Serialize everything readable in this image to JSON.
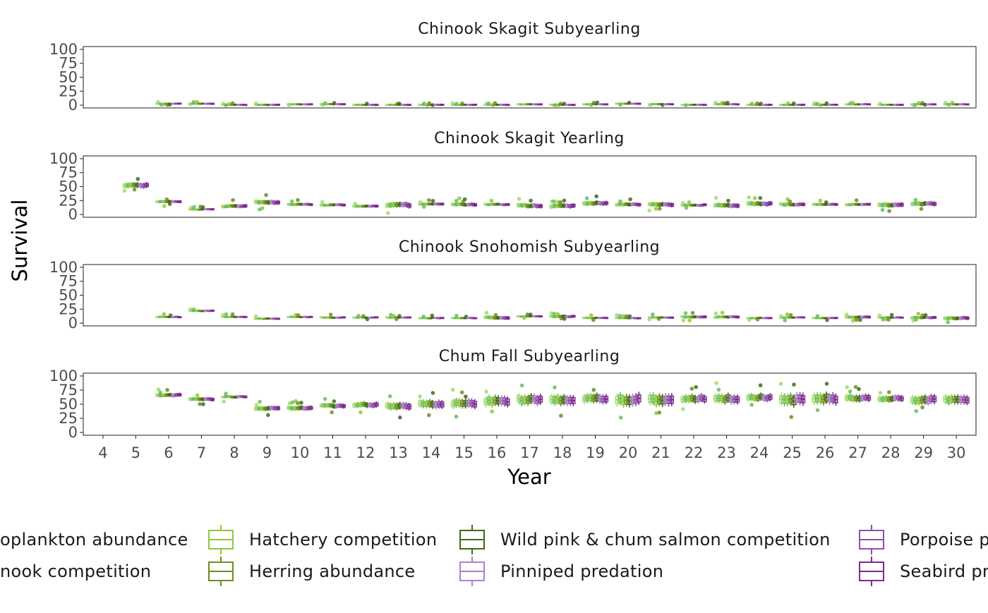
{
  "chart_data": {
    "type": "box",
    "xlabel": "Year",
    "ylabel": "Survival",
    "x_ticks": [
      4,
      5,
      6,
      7,
      8,
      9,
      10,
      11,
      12,
      13,
      14,
      15,
      16,
      17,
      18,
      19,
      20,
      21,
      22,
      23,
      24,
      25,
      26,
      27,
      28,
      29,
      30
    ],
    "x_range": [
      3.4,
      30.6
    ],
    "y_ticks": [
      0,
      25,
      50,
      75,
      100
    ],
    "y_range": [
      -5,
      105
    ],
    "grid": false,
    "legend_position": "bottom",
    "series_names": [
      "Zooplankton abundance",
      "Chinook competition",
      "Hatchery competition",
      "Herring abundance",
      "Wild pink & chum salmon competition",
      "Pinniped predation",
      "Porpoise predation",
      "Seabird predation"
    ],
    "series_colors": [
      "#a6d96a",
      "#66bd63",
      "#8fc93a",
      "#6b8e23",
      "#3f6b14",
      "#b080c8",
      "#9050a8",
      "#7b2a8c"
    ],
    "legend": [
      {
        "label": "oplankton abundance",
        "color": "#a6d96a"
      },
      {
        "label": "Hatchery competition",
        "color": "#8fc93a"
      },
      {
        "label": "Wild pink & chum salmon competition",
        "color": "#3f6b14"
      },
      {
        "label": "Porpoise p",
        "color": "#9050a8"
      },
      {
        "label": "nook competition",
        "color": "#66bd63"
      },
      {
        "label": "Herring abundance",
        "color": "#6b8e23"
      },
      {
        "label": "Pinniped predation",
        "color": "#b080c8"
      },
      {
        "label": "Seabird pr",
        "color": "#7b2a8c"
      }
    ],
    "panels": [
      {
        "title": "Chinook Skagit Subyearling",
        "years": [
          6,
          7,
          8,
          9,
          10,
          11,
          12,
          13,
          14,
          15,
          16,
          17,
          18,
          19,
          20,
          21,
          22,
          23,
          24,
          25,
          26,
          27,
          28,
          29,
          30
        ],
        "medians": [
          3,
          3,
          1,
          1,
          2,
          2,
          1,
          1,
          1,
          1,
          1,
          2,
          1,
          2,
          3,
          2,
          1,
          2,
          1,
          1,
          1,
          2,
          1,
          2,
          2
        ],
        "spread": [
          1,
          1,
          1,
          1,
          1,
          1,
          1,
          1,
          1,
          1,
          1,
          1,
          1,
          1,
          1,
          1,
          1,
          1,
          1,
          1,
          1,
          1,
          1,
          1,
          1
        ]
      },
      {
        "title": "Chinook Skagit Yearling",
        "years": [
          5,
          6,
          7,
          8,
          9,
          10,
          11,
          12,
          13,
          14,
          15,
          16,
          17,
          18,
          19,
          20,
          21,
          22,
          23,
          24,
          25,
          26,
          27,
          28,
          29
        ],
        "medians": [
          52,
          23,
          9,
          15,
          22,
          18,
          17,
          15,
          17,
          19,
          18,
          18,
          16,
          15,
          20,
          18,
          18,
          17,
          16,
          19,
          18,
          18,
          18,
          17,
          19
        ],
        "spread": [
          6,
          3,
          2,
          4,
          5,
          3,
          3,
          3,
          6,
          3,
          4,
          3,
          5,
          5,
          5,
          4,
          5,
          3,
          5,
          5,
          4,
          3,
          3,
          5,
          5
        ]
      },
      {
        "title": "Chinook Snohomish Subyearling",
        "years": [
          6,
          7,
          8,
          9,
          10,
          11,
          12,
          13,
          14,
          15,
          16,
          17,
          18,
          19,
          20,
          21,
          22,
          23,
          24,
          25,
          26,
          27,
          28,
          29,
          30
        ],
        "medians": [
          11,
          22,
          11,
          8,
          11,
          10,
          10,
          10,
          9,
          9,
          10,
          12,
          12,
          9,
          9,
          10,
          11,
          11,
          9,
          10,
          9,
          11,
          10,
          10,
          9
        ],
        "spread": [
          2,
          2,
          2,
          2,
          2,
          2,
          2,
          2,
          2,
          2,
          4,
          2,
          3,
          2,
          2,
          2,
          3,
          3,
          2,
          2,
          2,
          3,
          2,
          3,
          4
        ]
      },
      {
        "title": "Chum Fall Subyearling",
        "years": [
          6,
          7,
          8,
          9,
          10,
          11,
          12,
          13,
          14,
          15,
          16,
          17,
          18,
          19,
          20,
          21,
          22,
          23,
          24,
          25,
          26,
          27,
          28,
          29,
          30
        ],
        "medians": [
          66,
          59,
          63,
          43,
          43,
          47,
          49,
          47,
          50,
          52,
          55,
          58,
          58,
          60,
          58,
          58,
          60,
          60,
          62,
          58,
          60,
          61,
          60,
          58,
          58
        ],
        "spread": [
          4,
          4,
          3,
          5,
          5,
          5,
          6,
          8,
          9,
          10,
          11,
          11,
          11,
          10,
          13,
          13,
          9,
          10,
          8,
          13,
          12,
          8,
          7,
          10,
          10
        ]
      }
    ]
  }
}
